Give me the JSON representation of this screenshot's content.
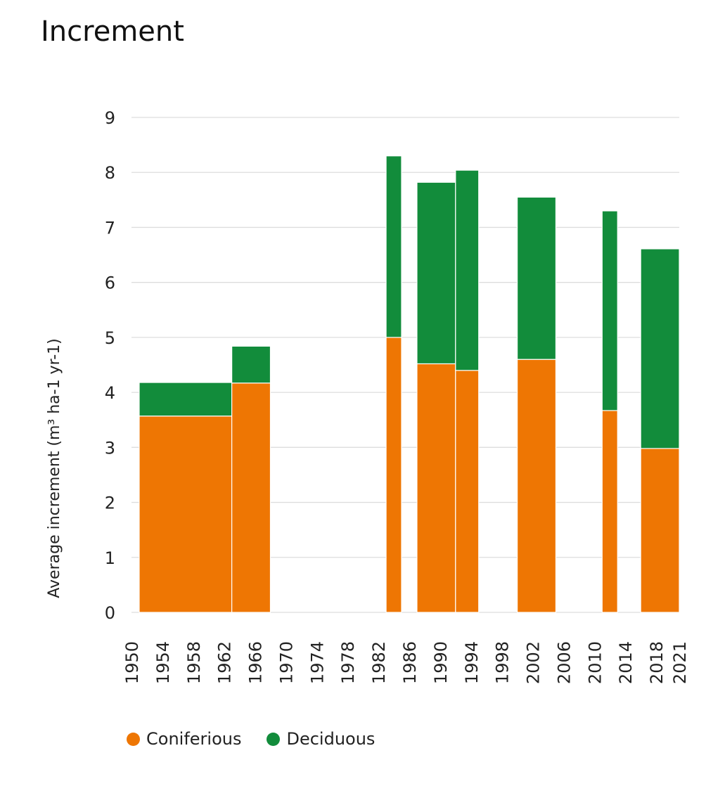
{
  "chart_data": {
    "type": "bar",
    "stacked": true,
    "title": "Increment",
    "xlabel": "",
    "ylabel": "Average increment (m³ ha-1 yr-1)",
    "xlim": [
      1950,
      2021
    ],
    "ylim": [
      0,
      9
    ],
    "yticks": [
      "0",
      "1",
      "2",
      "3",
      "4",
      "5",
      "6",
      "7",
      "8",
      "9"
    ],
    "xticks": [
      "1950",
      "1954",
      "1958",
      "1962",
      "1966",
      "1970",
      "1974",
      "1978",
      "1982",
      "1986",
      "1990",
      "1994",
      "1998",
      "2002",
      "2006",
      "2010",
      "2014",
      "2018",
      "2021"
    ],
    "grid": true,
    "legend_position": "bottom-left",
    "intervals": [
      {
        "start": 1951,
        "end": 1963
      },
      {
        "start": 1963,
        "end": 1968
      },
      {
        "start": 1983,
        "end": 1985
      },
      {
        "start": 1987,
        "end": 1992
      },
      {
        "start": 1992,
        "end": 1995
      },
      {
        "start": 2000,
        "end": 2005
      },
      {
        "start": 2011,
        "end": 2013
      },
      {
        "start": 2016,
        "end": 2021
      }
    ],
    "series": [
      {
        "name": "Coniferious",
        "color": "#EE7603",
        "values": [
          3.57,
          4.17,
          5.0,
          4.52,
          4.4,
          4.6,
          3.67,
          2.98
        ]
      },
      {
        "name": "Deciduous",
        "color": "#128C3B",
        "values": [
          0.61,
          0.67,
          3.3,
          3.3,
          3.64,
          2.95,
          3.63,
          3.63
        ]
      }
    ]
  }
}
